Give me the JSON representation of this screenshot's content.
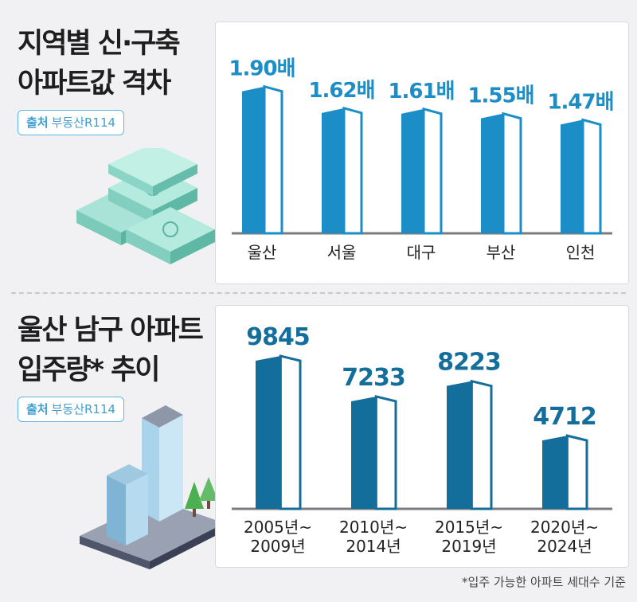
{
  "section1": {
    "title_lines": [
      "지역별 신·구축",
      "아파트값 격차"
    ],
    "source_label": "출처",
    "source_value": "부동산R114"
  },
  "section2": {
    "title_lines": [
      "울산 남구 아파트",
      "입주량* 추이"
    ],
    "source_label": "출처",
    "source_value": "부동산R114"
  },
  "footnote": "*입주 가능한 아파트 세대수 기준",
  "colors": {
    "chart1_bar": "#1b8ec7",
    "chart2_bar": "#146e9b",
    "label1": "#1b8ec7",
    "label2": "#146e9b",
    "source_border": "#5eb6e0"
  },
  "chart_data": [
    {
      "type": "bar",
      "categories": [
        "울산",
        "서울",
        "대구",
        "부산",
        "인천"
      ],
      "values": [
        1.9,
        1.62,
        1.61,
        1.55,
        1.47
      ],
      "value_labels": [
        "1.90배",
        "1.62배",
        "1.61배",
        "1.55배",
        "1.47배"
      ],
      "title": "지역별 신·구축 아파트값 격차",
      "xlabel": "",
      "ylabel": "",
      "grid": false,
      "legend": "none"
    },
    {
      "type": "bar",
      "categories": [
        "2005년~ 2009년",
        "2010년~ 2014년",
        "2015년~ 2019년",
        "2020년~ 2024년"
      ],
      "category_lines": [
        [
          "2005년~",
          "2009년"
        ],
        [
          "2010년~",
          "2014년"
        ],
        [
          "2015년~",
          "2019년"
        ],
        [
          "2020년~",
          "2024년"
        ]
      ],
      "values": [
        9845,
        7233,
        8223,
        4712
      ],
      "value_labels": [
        "9845",
        "7233",
        "8223",
        "4712"
      ],
      "title": "울산 남구 아파트 입주량* 추이",
      "xlabel": "",
      "ylabel": "",
      "grid": false,
      "legend": "none"
    }
  ]
}
